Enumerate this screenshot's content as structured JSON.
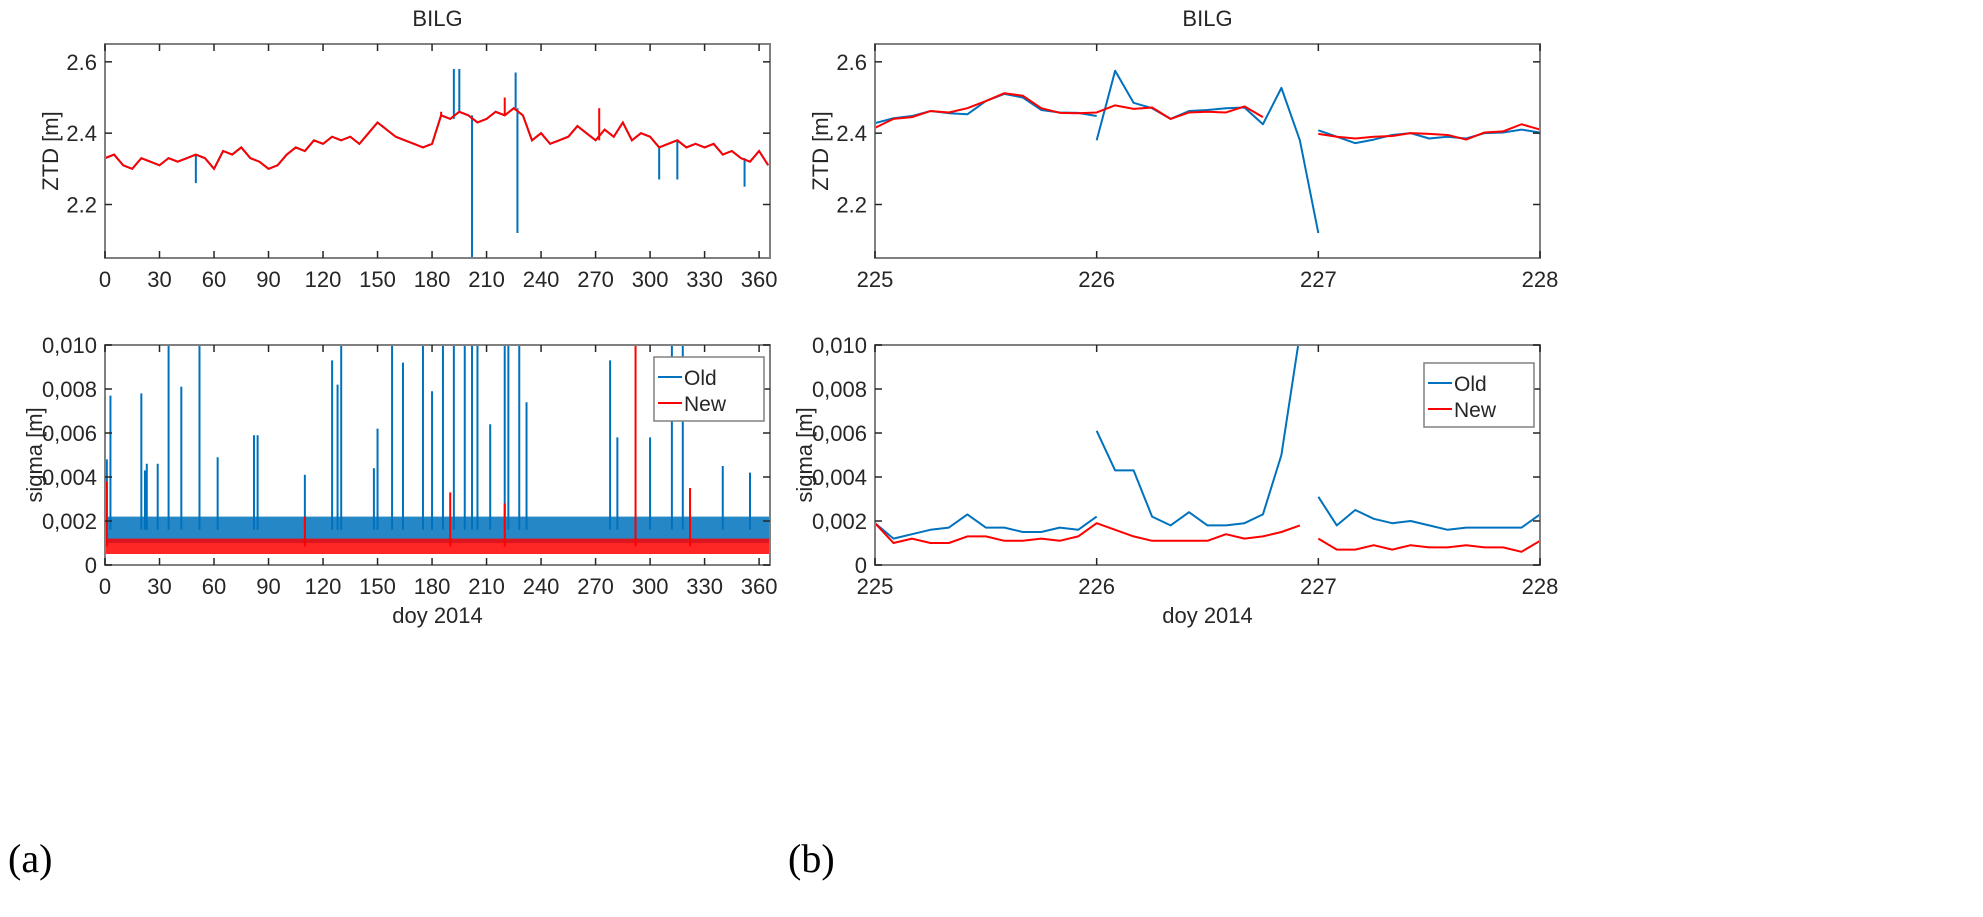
{
  "colors": {
    "old": "#0072BD",
    "new": "#FF0000",
    "axis": "#262626",
    "box": "#808080"
  },
  "panel_labels": [
    "(a)",
    "(b)"
  ],
  "chart_data": [
    {
      "id": "a-top",
      "type": "line",
      "title": "BILG",
      "xlabel": "",
      "ylabel": "ZTD [m]",
      "xlim": [
        0,
        366
      ],
      "ylim": [
        2.05,
        2.65
      ],
      "xticks": [
        0,
        30,
        60,
        90,
        120,
        150,
        180,
        210,
        240,
        270,
        300,
        330,
        360
      ],
      "xtick_labels": [
        "0",
        "30",
        "60",
        "90",
        "120",
        "150",
        "180",
        "210",
        "240",
        "270",
        "300",
        "330",
        "360"
      ],
      "yticks": [
        2.2,
        2.4,
        2.6
      ],
      "ytick_labels": [
        "2.2",
        "2.4",
        "2.6"
      ],
      "grid": false,
      "series": [
        {
          "key": "old",
          "x_step": 5,
          "x_start": 0,
          "values": [
            2.33,
            2.34,
            2.31,
            2.3,
            2.33,
            2.32,
            2.31,
            2.33,
            2.32,
            2.33,
            2.34,
            2.33,
            2.3,
            2.35,
            2.34,
            2.36,
            2.33,
            2.32,
            2.3,
            2.31,
            2.34,
            2.36,
            2.35,
            2.38,
            2.37,
            2.39,
            2.38,
            2.39,
            2.37,
            2.4,
            2.43,
            2.41,
            2.39,
            2.38,
            2.37,
            2.36,
            2.37,
            2.45,
            2.44,
            2.46,
            2.45,
            2.43,
            2.44,
            2.46,
            2.45,
            2.47,
            2.45,
            2.38,
            2.4,
            2.37,
            2.38,
            2.39,
            2.42,
            2.4,
            2.38,
            2.41,
            2.39,
            2.43,
            2.38,
            2.4,
            2.39,
            2.36,
            2.37,
            2.38,
            2.36,
            2.37,
            2.36,
            2.37,
            2.34,
            2.35,
            2.33,
            2.32,
            2.35,
            2.31
          ],
          "spikes": [
            [
              50,
              2.26
            ],
            [
              192,
              2.58
            ],
            [
              195,
              2.58
            ],
            [
              202,
              2.05
            ],
            [
              226,
              2.57
            ],
            [
              227,
              2.12
            ],
            [
              352,
              2.25
            ],
            [
              305,
              2.27
            ],
            [
              315,
              2.27
            ]
          ]
        },
        {
          "key": "new",
          "x_step": 5,
          "x_start": 0,
          "values": [
            2.33,
            2.34,
            2.31,
            2.3,
            2.33,
            2.32,
            2.31,
            2.33,
            2.32,
            2.33,
            2.34,
            2.33,
            2.3,
            2.35,
            2.34,
            2.36,
            2.33,
            2.32,
            2.3,
            2.31,
            2.34,
            2.36,
            2.35,
            2.38,
            2.37,
            2.39,
            2.38,
            2.39,
            2.37,
            2.4,
            2.43,
            2.41,
            2.39,
            2.38,
            2.37,
            2.36,
            2.37,
            2.45,
            2.44,
            2.46,
            2.45,
            2.43,
            2.44,
            2.46,
            2.45,
            2.47,
            2.45,
            2.38,
            2.4,
            2.37,
            2.38,
            2.39,
            2.42,
            2.4,
            2.38,
            2.41,
            2.39,
            2.43,
            2.38,
            2.4,
            2.39,
            2.36,
            2.37,
            2.38,
            2.36,
            2.37,
            2.36,
            2.37,
            2.34,
            2.35,
            2.33,
            2.32,
            2.35,
            2.31
          ],
          "spikes": [
            [
              185,
              2.46
            ],
            [
              220,
              2.5
            ],
            [
              272,
              2.47
            ]
          ]
        }
      ]
    },
    {
      "id": "a-bottom",
      "type": "line",
      "title": "",
      "xlabel": "doy 2014",
      "ylabel": "sigma [m]",
      "xlim": [
        0,
        366
      ],
      "ylim": [
        0,
        0.01
      ],
      "xticks": [
        0,
        30,
        60,
        90,
        120,
        150,
        180,
        210,
        240,
        270,
        300,
        330,
        360
      ],
      "xtick_labels": [
        "0",
        "30",
        "60",
        "90",
        "120",
        "150",
        "180",
        "210",
        "240",
        "270",
        "300",
        "330",
        "360"
      ],
      "yticks": [
        0,
        0.002,
        0.004,
        0.006,
        0.008,
        0.01
      ],
      "ytick_labels": [
        "0",
        "0,002",
        "0,004",
        "0,006",
        "0,008",
        "0,010"
      ],
      "grid": false,
      "legend": {
        "placement": "top-right",
        "entries": [
          "Old",
          "New"
        ]
      },
      "series": [
        {
          "key": "old",
          "name": "Old",
          "band": [
            0.001,
            0.0022
          ],
          "spikes": [
            [
              1,
              0.0048
            ],
            [
              3,
              0.0077
            ],
            [
              20,
              0.0078
            ],
            [
              22,
              0.0043
            ],
            [
              23,
              0.0046
            ],
            [
              29,
              0.0046
            ],
            [
              35,
              0.01
            ],
            [
              42,
              0.0081
            ],
            [
              52,
              0.01
            ],
            [
              62,
              0.0049
            ],
            [
              82,
              0.0059
            ],
            [
              84,
              0.0059
            ],
            [
              110,
              0.0041
            ],
            [
              125,
              0.0093
            ],
            [
              128,
              0.0082
            ],
            [
              130,
              0.01
            ],
            [
              148,
              0.0044
            ],
            [
              150,
              0.0062
            ],
            [
              158,
              0.01
            ],
            [
              164,
              0.0092
            ],
            [
              175,
              0.01
            ],
            [
              180,
              0.0079
            ],
            [
              186,
              0.01
            ],
            [
              192,
              0.01
            ],
            [
              198,
              0.01
            ],
            [
              202,
              0.01
            ],
            [
              205,
              0.01
            ],
            [
              212,
              0.0064
            ],
            [
              220,
              0.01
            ],
            [
              222,
              0.01
            ],
            [
              228,
              0.01
            ],
            [
              232,
              0.0074
            ],
            [
              278,
              0.0093
            ],
            [
              282,
              0.0058
            ],
            [
              300,
              0.0058
            ],
            [
              312,
              0.01
            ],
            [
              318,
              0.01
            ],
            [
              340,
              0.0045
            ],
            [
              355,
              0.0042
            ]
          ]
        },
        {
          "key": "new",
          "name": "New",
          "band": [
            0.0005,
            0.0012
          ],
          "spikes": [
            [
              1,
              0.0038
            ],
            [
              110,
              0.0022
            ],
            [
              190,
              0.0033
            ],
            [
              220,
              0.0028
            ],
            [
              292,
              0.01
            ],
            [
              322,
              0.0035
            ]
          ]
        }
      ]
    },
    {
      "id": "b-top",
      "type": "line",
      "title": "BILG",
      "xlabel": "",
      "ylabel": "ZTD [m]",
      "xlim": [
        225,
        228
      ],
      "ylim": [
        2.05,
        2.65
      ],
      "xticks": [
        225,
        226,
        227,
        228
      ],
      "xtick_labels": [
        "225",
        "226",
        "227",
        "228"
      ],
      "yticks": [
        2.2,
        2.4,
        2.6
      ],
      "ytick_labels": [
        "2.2",
        "2.4",
        "2.6"
      ],
      "grid": false,
      "x_step_hours": 2,
      "series": [
        {
          "key": "old",
          "segments": [
            {
              "start": 225,
              "values": [
                2.428,
                2.442,
                2.448,
                2.462,
                2.456,
                2.453,
                2.49,
                2.51,
                2.5,
                2.465,
                2.458,
                2.457,
                2.448
              ]
            },
            {
              "start": 226,
              "values": [
                2.38,
                2.575,
                2.485,
                2.47,
                2.44,
                2.462,
                2.465,
                2.47,
                2.472,
                2.425,
                2.527,
                2.38,
                2.12
              ]
            },
            {
              "start": 227,
              "values": [
                2.408,
                2.39,
                2.372,
                2.382,
                2.395,
                2.4,
                2.385,
                2.39,
                2.385,
                2.4,
                2.402,
                2.41,
                2.402
              ]
            }
          ]
        },
        {
          "key": "new",
          "segments": [
            {
              "start": 225,
              "values": [
                2.415,
                2.44,
                2.445,
                2.462,
                2.458,
                2.47,
                2.49,
                2.512,
                2.505,
                2.47,
                2.457,
                2.456,
                2.458,
                2.478,
                2.468,
                2.472,
                2.44,
                2.458,
                2.46,
                2.458,
                2.475,
                2.445
              ]
            },
            {
              "start": 227,
              "values": [
                2.398,
                2.39,
                2.385,
                2.39,
                2.392,
                2.4,
                2.398,
                2.395,
                2.382,
                2.402,
                2.405,
                2.425,
                2.41
              ]
            }
          ]
        }
      ]
    },
    {
      "id": "b-bottom",
      "type": "line",
      "title": "",
      "xlabel": "doy 2014",
      "ylabel": "sigma [m]",
      "xlim": [
        225,
        228
      ],
      "ylim": [
        0,
        0.01
      ],
      "xticks": [
        225,
        226,
        227,
        228
      ],
      "xtick_labels": [
        "225",
        "226",
        "227",
        "228"
      ],
      "yticks": [
        0,
        0.002,
        0.004,
        0.006,
        0.008,
        0.01
      ],
      "ytick_labels": [
        "0",
        "0,002",
        "0,004",
        "0,006",
        "0,008",
        "0,010"
      ],
      "grid": false,
      "legend": {
        "placement": "top-right",
        "entries": [
          "Old",
          "New"
        ]
      },
      "x_step_hours": 2,
      "series": [
        {
          "key": "old",
          "name": "Old",
          "segments": [
            {
              "start": 225,
              "values": [
                0.0019,
                0.0012,
                0.0014,
                0.0016,
                0.0017,
                0.0023,
                0.0017,
                0.0017,
                0.0015,
                0.0015,
                0.0017,
                0.0016,
                0.0022
              ]
            },
            {
              "start": 226,
              "values": [
                0.0061,
                0.0043,
                0.0043,
                0.0022,
                0.0018,
                0.0024,
                0.0018,
                0.0018,
                0.0019,
                0.0023,
                0.005,
                0.0105
              ]
            },
            {
              "start": 227,
              "values": [
                0.0031,
                0.0018,
                0.0025,
                0.0021,
                0.0019,
                0.002,
                0.0018,
                0.0016,
                0.0017,
                0.0017,
                0.0017,
                0.0017,
                0.0023
              ]
            }
          ]
        },
        {
          "key": "new",
          "name": "New",
          "segments": [
            {
              "start": 225,
              "values": [
                0.0019,
                0.001,
                0.0012,
                0.001,
                0.001,
                0.0013,
                0.0013,
                0.0011,
                0.0011,
                0.0012,
                0.0011,
                0.0013,
                0.0019,
                0.0016,
                0.0013,
                0.0011,
                0.0011,
                0.0011,
                0.0011,
                0.0014,
                0.0012,
                0.0013,
                0.0015,
                0.0018
              ]
            },
            {
              "start": 227,
              "values": [
                0.0012,
                0.0007,
                0.0007,
                0.0009,
                0.0007,
                0.0009,
                0.0008,
                0.0008,
                0.0009,
                0.0008,
                0.0008,
                0.0006,
                0.0011
              ]
            }
          ]
        }
      ]
    }
  ]
}
